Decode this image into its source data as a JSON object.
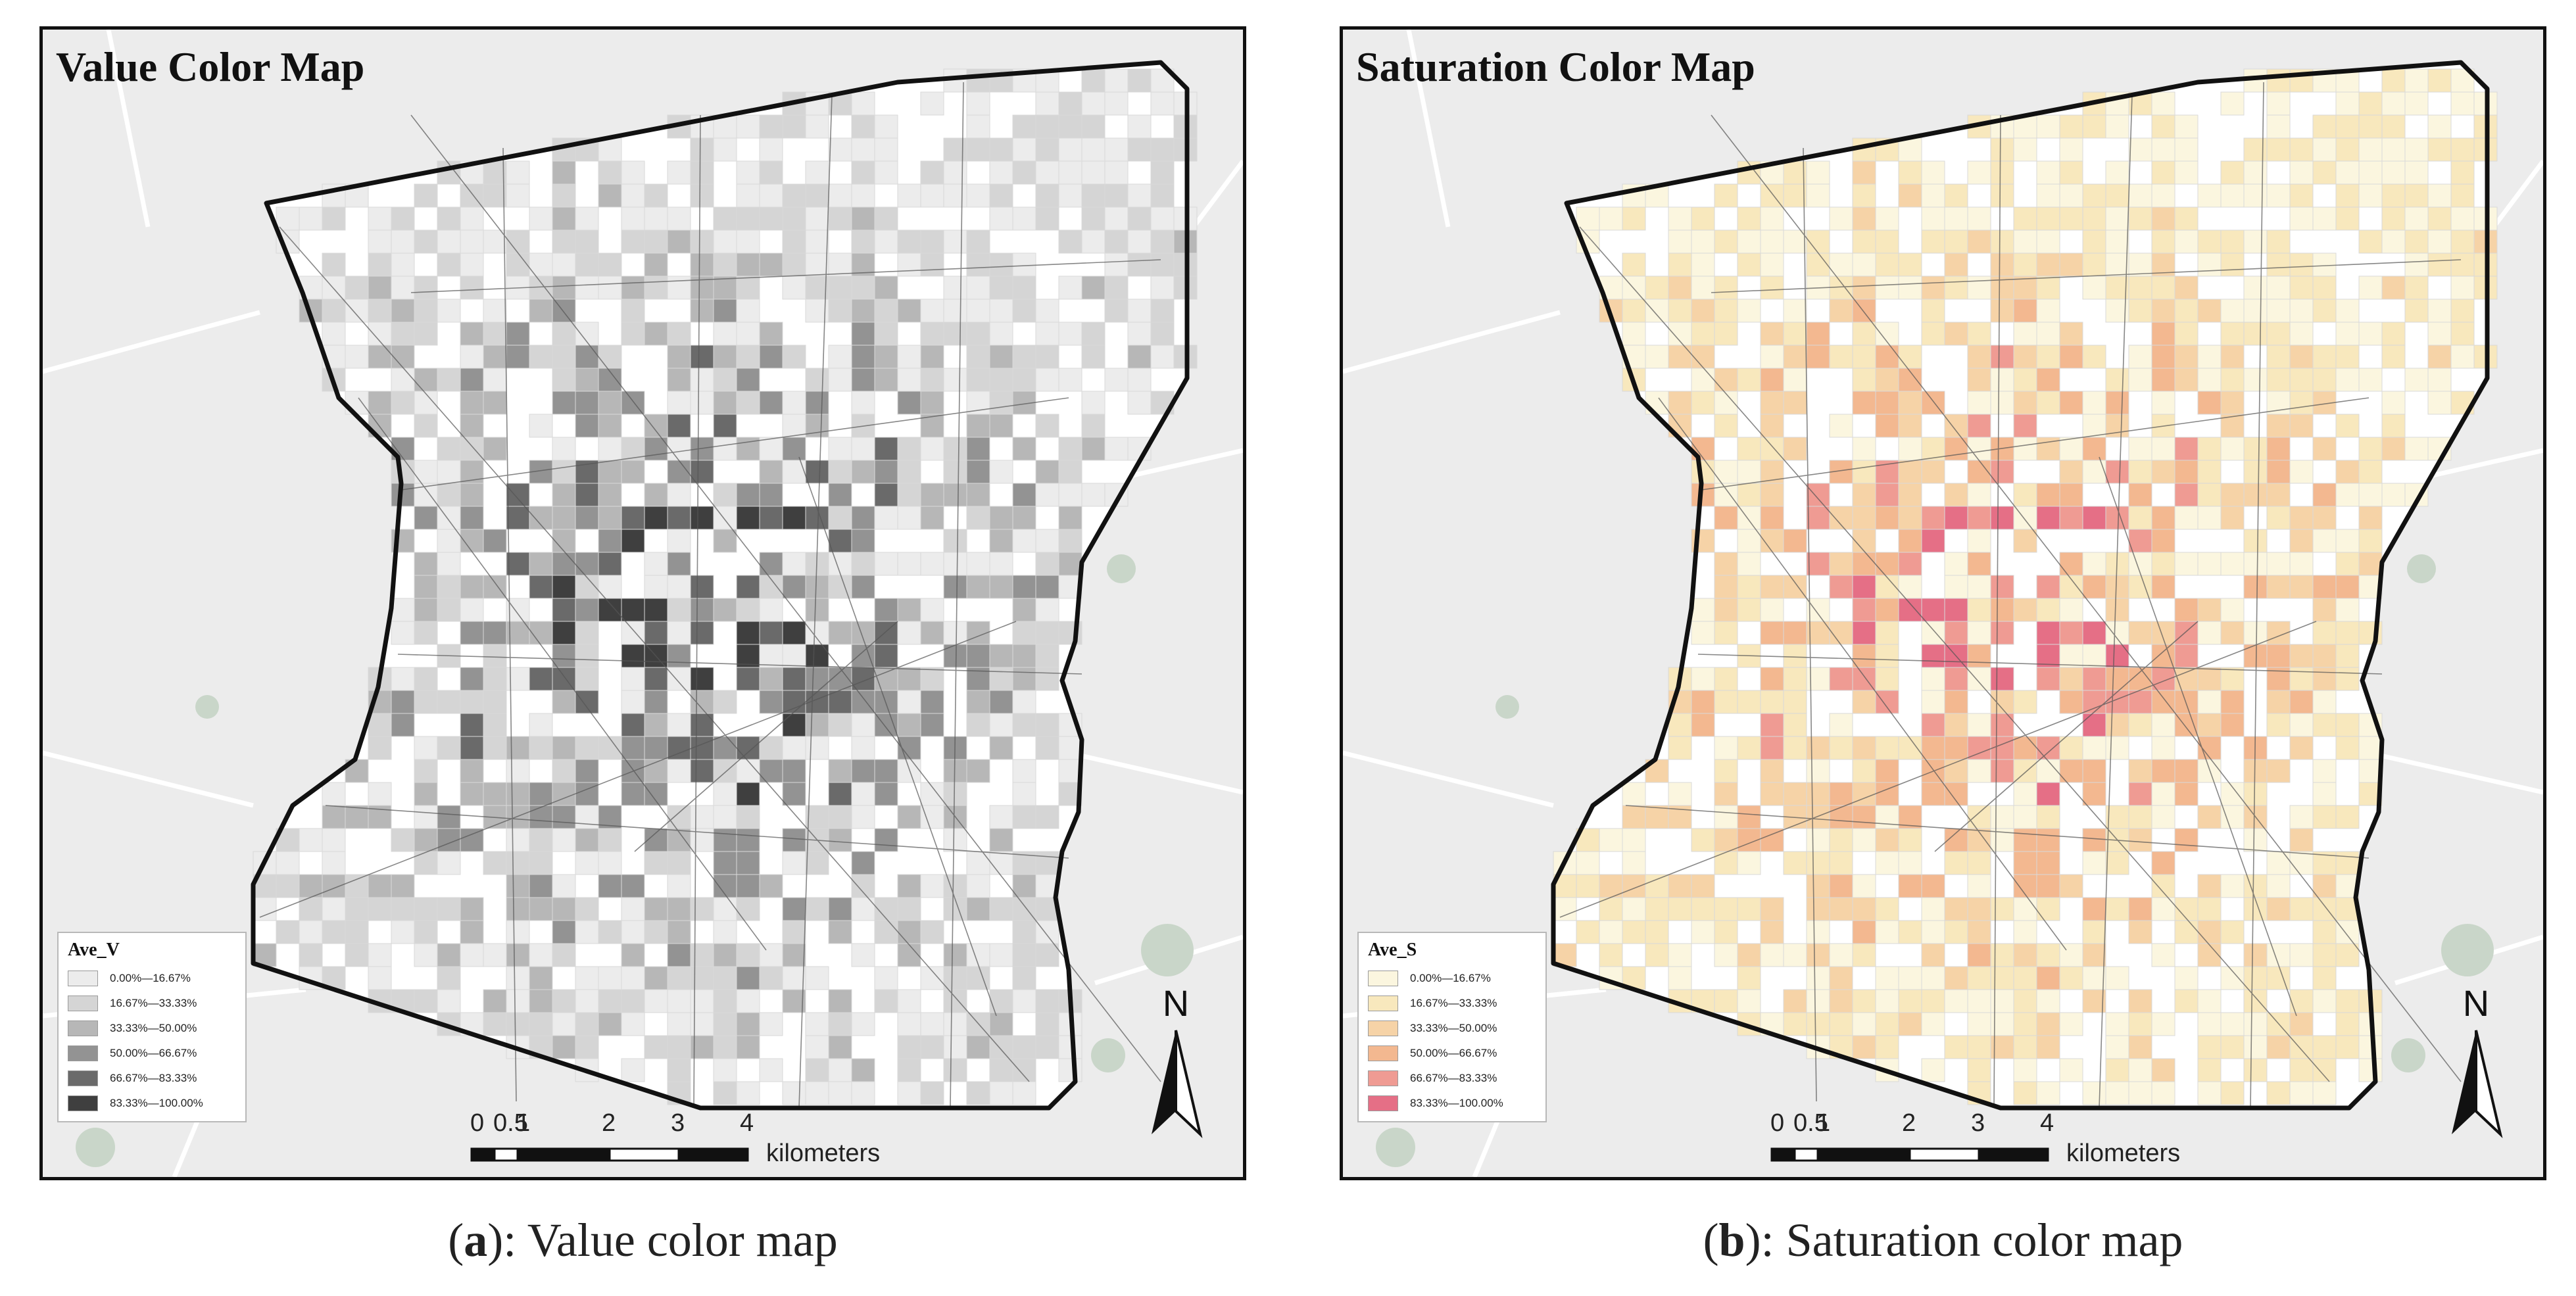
{
  "panels": [
    {
      "title": "Value Color Map",
      "legend": {
        "title": "Ave_V",
        "classes": [
          {
            "label": "0.00%—16.67%",
            "color": "#ececec"
          },
          {
            "label": "16.67%—33.33%",
            "color": "#d5d5d5"
          },
          {
            "label": "33.33%—50.00%",
            "color": "#b7b7b7"
          },
          {
            "label": "50.00%—66.67%",
            "color": "#939393"
          },
          {
            "label": "66.67%—83.33%",
            "color": "#6a6a6a"
          },
          {
            "label": "83.33%—100.00%",
            "color": "#3f3f3f"
          }
        ]
      },
      "north_label": "N",
      "scale": {
        "ticks": [
          "0",
          "0.5",
          "1",
          "2",
          "3",
          "4"
        ],
        "units": "kilometers"
      },
      "caption": {
        "letter": "a",
        "text": "): Value color map"
      }
    },
    {
      "title": "Saturation Color Map",
      "legend": {
        "title": "Ave_S",
        "classes": [
          {
            "label": "0.00%—16.67%",
            "color": "#fbf6df"
          },
          {
            "label": "16.67%—33.33%",
            "color": "#f8e8bd"
          },
          {
            "label": "33.33%—50.00%",
            "color": "#f6d3a7"
          },
          {
            "label": "50.00%—66.67%",
            "color": "#f3b890"
          },
          {
            "label": "66.67%—83.33%",
            "color": "#ef9b93"
          },
          {
            "label": "83.33%—100.00%",
            "color": "#e56f86"
          }
        ]
      },
      "north_label": "N",
      "scale": {
        "ticks": [
          "0",
          "0.5",
          "1",
          "2",
          "3",
          "4"
        ],
        "units": "kilometers"
      },
      "caption": {
        "letter": "b",
        "text": "): Saturation color map"
      }
    }
  ],
  "colors": {
    "basemap": "#ececec",
    "boundary": "#111111",
    "study_area_fill": "#ffffff",
    "roads": "#555555",
    "green_patch": "#c9d6c9"
  },
  "caption_open_paren": "("
}
